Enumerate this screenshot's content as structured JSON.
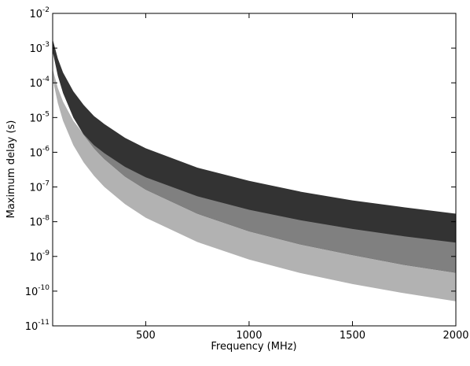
{
  "chart_data": {
    "type": "band",
    "xlabel": "Frequency (MHz)",
    "ylabel": "Maximum delay (s)",
    "x": [
      50,
      75,
      100,
      150,
      200,
      250,
      300,
      400,
      500,
      750,
      1000,
      1250,
      1500,
      1750,
      2000
    ],
    "bands": [
      {
        "color": "#b2b2b2",
        "upper": [
          0.00025,
          7.1e-05,
          2.9e-05,
          8.1e-06,
          3.3e-06,
          1.6e-06,
          9.4e-07,
          3.8e-07,
          1.9e-07,
          5.4e-08,
          2.2e-08,
          1.1e-08,
          6.2e-09,
          3.8e-09,
          2.5e-09
        ],
        "lower": [
          0.00013,
          2.6e-05,
          8.1e-06,
          1.6e-06,
          5.1e-07,
          2.1e-07,
          1e-07,
          3.2e-08,
          1.3e-08,
          2.6e-09,
          8.1e-10,
          3.3e-10,
          1.6e-10,
          8.7e-11,
          5.1e-11
        ]
      },
      {
        "color": "#333333",
        "upper": [
          0.0018,
          0.0005,
          0.0002,
          5.7e-05,
          2.3e-05,
          1.1e-05,
          6.5e-06,
          2.6e-06,
          1.3e-06,
          3.6e-07,
          1.5e-07,
          7.3e-08,
          4.1e-08,
          2.6e-08,
          1.7e-08
        ],
        "lower": [
          0.0008,
          0.00016,
          5.1e-05,
          1e-05,
          3.2e-06,
          1.3e-06,
          6.4e-07,
          2e-07,
          8.4e-08,
          1.7e-08,
          5.3e-09,
          2.2e-09,
          1.1e-09,
          5.7e-10,
          3.4e-10
        ]
      }
    ],
    "overlap_color": "#808080",
    "xlim": [
      50,
      2000
    ],
    "xticks": [
      500,
      1000,
      1500,
      2000
    ],
    "ylim": [
      1e-11,
      0.01
    ],
    "log_y": true,
    "yticks": [
      {
        "value": 1e-11,
        "label": "10",
        "exponent": "-11"
      },
      {
        "value": 1e-10,
        "label": "10",
        "exponent": "-10"
      },
      {
        "value": 1e-09,
        "label": "10",
        "exponent": "-9"
      },
      {
        "value": 1e-08,
        "label": "10",
        "exponent": "-8"
      },
      {
        "value": 1e-07,
        "label": "10",
        "exponent": "-7"
      },
      {
        "value": 1e-06,
        "label": "10",
        "exponent": "-6"
      },
      {
        "value": 1e-05,
        "label": "10",
        "exponent": "-5"
      },
      {
        "value": 0.0001,
        "label": "10",
        "exponent": "-4"
      },
      {
        "value": 0.001,
        "label": "10",
        "exponent": "-3"
      },
      {
        "value": 0.01,
        "label": "10",
        "exponent": "-2"
      }
    ]
  }
}
